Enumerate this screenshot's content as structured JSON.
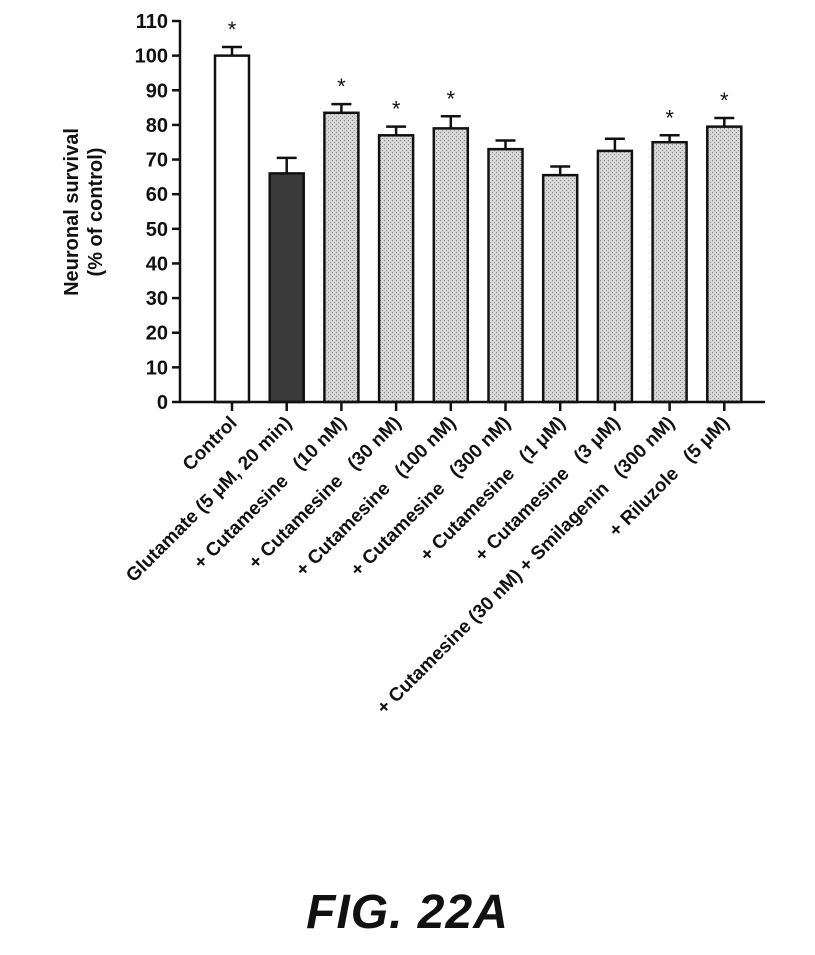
{
  "figure": {
    "caption": "FIG. 22A"
  },
  "chart_data": {
    "type": "bar",
    "ylabel_lines": [
      "Neuronal survival",
      "(% of control)"
    ],
    "xlabel": "",
    "ylim": [
      0,
      110
    ],
    "yticks": [
      0,
      10,
      20,
      30,
      40,
      50,
      60,
      70,
      80,
      90,
      100,
      110
    ],
    "categories": [
      "Control",
      "Glutamate (5 μM, 20 min)",
      "+ Cutamesine   (10 nM)",
      "+ Cutamesine   (30 nM)",
      "+ Cutamesine   (100 nM)",
      "+ Cutamesine   (300 nM)",
      "+ Cutamesine   (1 μM)",
      "+ Cutamesine   (3 μM)",
      "+ Cutamesine (30 nM) + Smilagenin   (300 nM)",
      "+ Riluzole   (5 μM)"
    ],
    "values": [
      100,
      66,
      83.5,
      77,
      79,
      73,
      65.5,
      72.5,
      75,
      79.5
    ],
    "errors": [
      2.5,
      4.5,
      2.5,
      2.5,
      3.5,
      2.5,
      2.5,
      3.5,
      2,
      2.5
    ],
    "significance": [
      "*",
      "",
      "*",
      "*",
      "*",
      "",
      "",
      "",
      "*",
      "*"
    ],
    "fills": [
      "#ffffff",
      "#3a3a3a",
      "#d2d2d2",
      "#d2d2d2",
      "#d2d2d2",
      "#d2d2d2",
      "#d2d2d2",
      "#d2d2d2",
      "#d2d2d2",
      "#d2d2d2"
    ],
    "grid": false,
    "legend": "none"
  }
}
